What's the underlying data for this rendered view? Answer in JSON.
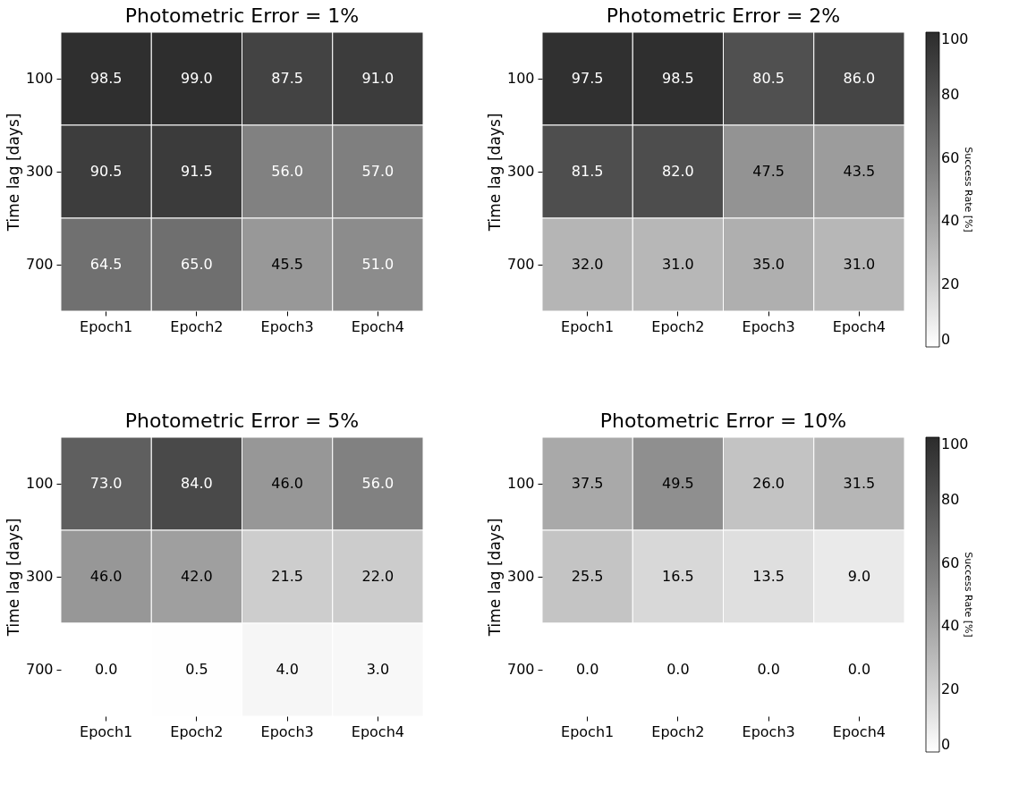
{
  "chart_data": [
    {
      "type": "heatmap",
      "title": "Photometric Error = 1%",
      "ylabel": "Time lag [days]",
      "categories": [
        "Epoch1",
        "Epoch2",
        "Epoch3",
        "Epoch4"
      ],
      "y_categories": [
        "100",
        "300",
        "700"
      ],
      "cells": [
        [
          98.5,
          99.0,
          87.5,
          91.0
        ],
        [
          90.5,
          91.5,
          56.0,
          57.0
        ],
        [
          64.5,
          65.0,
          45.5,
          51.0
        ]
      ],
      "cell_labels": [
        [
          "98.5",
          "99.0",
          "87.5",
          "91.0"
        ],
        [
          "90.5",
          "91.5",
          "56.0",
          "57.0"
        ],
        [
          "64.5",
          "65.0",
          "45.5",
          "51.0"
        ]
      ]
    },
    {
      "type": "heatmap",
      "title": "Photometric Error = 2%",
      "ylabel": "Time lag [days]",
      "categories": [
        "Epoch1",
        "Epoch2",
        "Epoch3",
        "Epoch4"
      ],
      "y_categories": [
        "100",
        "300",
        "700"
      ],
      "cells": [
        [
          97.5,
          98.5,
          80.5,
          86.0
        ],
        [
          81.5,
          82.0,
          47.5,
          43.5
        ],
        [
          32.0,
          31.0,
          35.0,
          31.0
        ]
      ],
      "cell_labels": [
        [
          "97.5",
          "98.5",
          "80.5",
          "86.0"
        ],
        [
          "81.5",
          "82.0",
          "47.5",
          "43.5"
        ],
        [
          "32.0",
          "31.0",
          "35.0",
          "31.0"
        ]
      ],
      "clim": [
        0,
        100
      ],
      "cticks": [
        0,
        20,
        40,
        60,
        80,
        100
      ],
      "clabel": "Success Rate [%]"
    },
    {
      "type": "heatmap",
      "title": "Photometric Error = 5%",
      "ylabel": "Time lag [days]",
      "categories": [
        "Epoch1",
        "Epoch2",
        "Epoch3",
        "Epoch4"
      ],
      "y_categories": [
        "100",
        "300",
        "700"
      ],
      "cells": [
        [
          73.0,
          84.0,
          46.0,
          56.0
        ],
        [
          46.0,
          42.0,
          21.5,
          22.0
        ],
        [
          0.0,
          0.5,
          4.0,
          3.0
        ]
      ],
      "cell_labels": [
        [
          "73.0",
          "84.0",
          "46.0",
          "56.0"
        ],
        [
          "46.0",
          "42.0",
          "21.5",
          "22.0"
        ],
        [
          "0.0",
          "0.5",
          "4.0",
          "3.0"
        ]
      ]
    },
    {
      "type": "heatmap",
      "title": "Photometric Error = 10%",
      "ylabel": "Time lag [days]",
      "categories": [
        "Epoch1",
        "Epoch2",
        "Epoch3",
        "Epoch4"
      ],
      "y_categories": [
        "100",
        "300",
        "700"
      ],
      "cells": [
        [
          37.5,
          49.5,
          26.0,
          31.5
        ],
        [
          25.5,
          16.5,
          13.5,
          9.0
        ],
        [
          0.0,
          0.0,
          0.0,
          0.0
        ]
      ],
      "cell_labels": [
        [
          "37.5",
          "49.5",
          "26.0",
          "31.5"
        ],
        [
          "25.5",
          "16.5",
          "13.5",
          "9.0"
        ],
        [
          "0.0",
          "0.0",
          "0.0",
          "0.0"
        ]
      ],
      "clim": [
        0,
        100
      ],
      "cticks": [
        0,
        20,
        40,
        60,
        80,
        100
      ],
      "clabel": "Success Rate [%]"
    }
  ]
}
